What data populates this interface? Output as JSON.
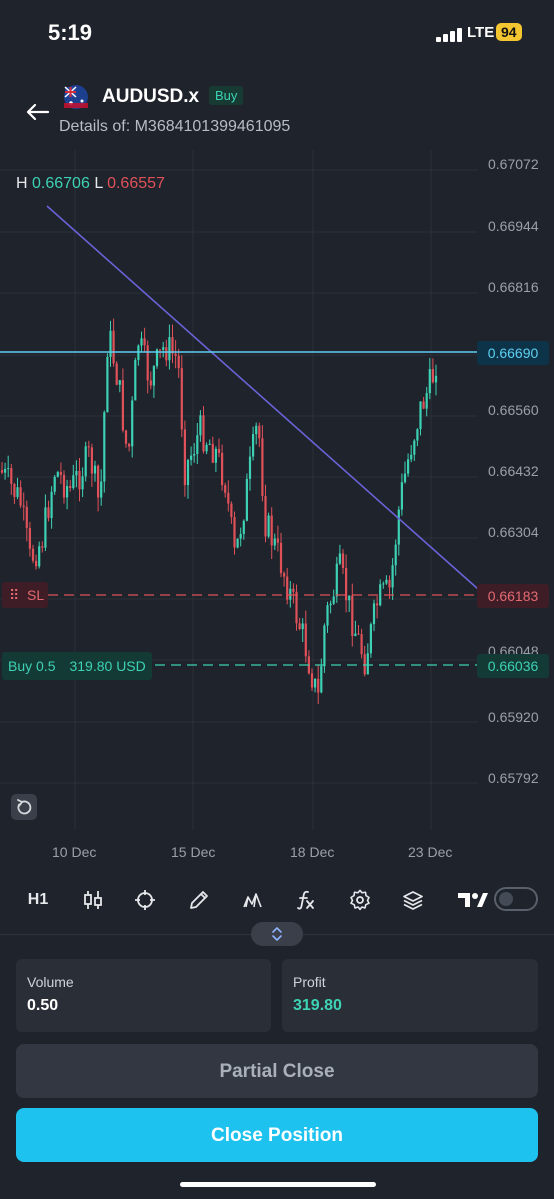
{
  "status_bar": {
    "time": "5:19",
    "network": "LTE",
    "battery": "94"
  },
  "header": {
    "symbol": "AUDUSD.x",
    "side": "Buy",
    "details": "Details of: M3684101399461095"
  },
  "chart": {
    "high_label": "H",
    "high_value": "0.66706",
    "low_label": "L",
    "low_value": "0.66557",
    "y_ticks": [
      "0.67072",
      "0.66944",
      "0.66816",
      "0.66560",
      "0.66432",
      "0.66304",
      "0.66048",
      "0.65920",
      "0.65792"
    ],
    "x_ticks": [
      "10 Dec",
      "15 Dec",
      "18 Dec",
      "23 Dec"
    ],
    "current_price": "0.66690",
    "sl_price": "0.66183",
    "entry_price": "0.66036",
    "sl_label": "SL",
    "position_label": "Buy 0.5",
    "position_pnl": "319.80 USD",
    "colors": {
      "up": "#3dd2b5",
      "down": "#e0515a",
      "trendline": "#6a63d8",
      "price_line": "#5fd0f2"
    }
  },
  "toolbar": {
    "timeframe": "H1",
    "icons": [
      "candles-icon",
      "crosshair-icon",
      "pencil-icon",
      "indicators-icon",
      "function-icon",
      "gear-icon",
      "layers-icon",
      "tradingview-logo"
    ]
  },
  "volume": {
    "label": "Volume",
    "value": "0.50"
  },
  "profit": {
    "label": "Profit",
    "value": "319.80"
  },
  "buttons": {
    "partial_close": "Partial Close",
    "close_position": "Close Position"
  }
}
